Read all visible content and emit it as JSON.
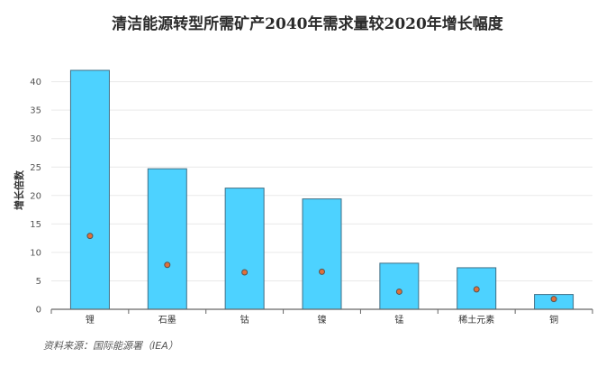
{
  "chart_data": {
    "type": "bar",
    "title": "清洁能源转型所需矿产2040年需求量较2020年增长幅度",
    "xlabel": "",
    "ylabel": "增长倍数",
    "ylim": [
      0,
      42
    ],
    "yticks": [
      0,
      5,
      10,
      15,
      20,
      25,
      30,
      35,
      40
    ],
    "grid": true,
    "legend": "none",
    "categories": [
      "锂",
      "石墨",
      "钴",
      "镍",
      "锰",
      "稀土元素",
      "铜"
    ],
    "series": [
      {
        "values": [
          42.0,
          24.7,
          21.3,
          19.4,
          8.1,
          7.3,
          2.6
        ]
      },
      {
        "values": [
          12.9,
          7.8,
          6.5,
          6.6,
          3.1,
          3.5,
          1.8
        ]
      }
    ],
    "source": "资料来源：国际能源署（IEA）"
  },
  "colors": {
    "bar_fill": "#4dd2ff",
    "bar_stroke": "#3f6f86",
    "marker_fill": "#e0703a",
    "marker_stroke": "#555555",
    "grid": "#e9e9e9",
    "axis": "#666666"
  }
}
